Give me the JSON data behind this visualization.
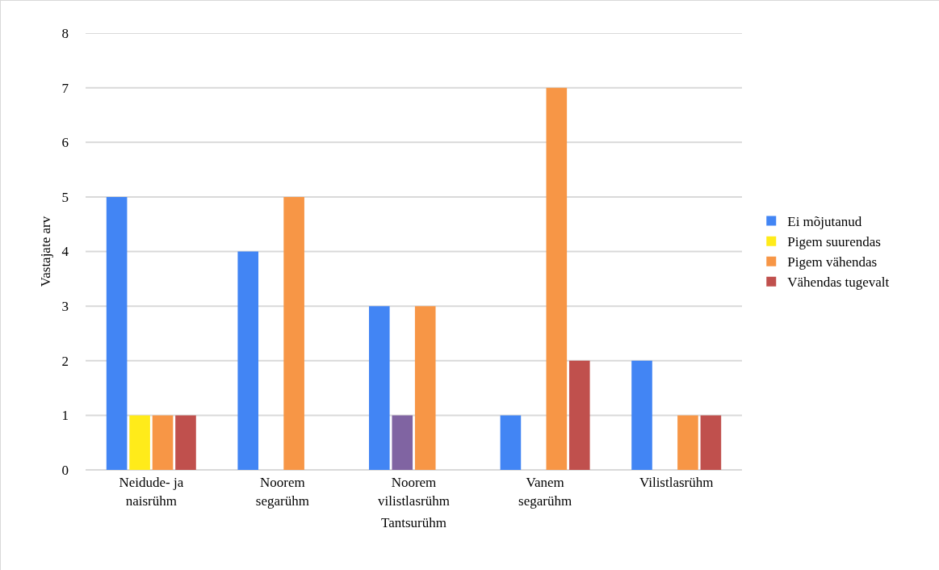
{
  "chart_data": {
    "type": "bar",
    "xlabel": "Tantsurühm",
    "ylabel": "Vastajate arv",
    "categories": [
      "Neidude- ja naisrühm",
      "Noorem segarühm",
      "Noorem vilistlasrühm",
      "Vanem segarühm",
      "Vilistlasrühm"
    ],
    "series": [
      {
        "name": "Ei mõjutanud",
        "color": "#4285f4",
        "values": [
          5,
          4,
          3,
          1,
          2
        ]
      },
      {
        "name": "Pigem suurendas",
        "color": "#ffeb1a",
        "colors": [
          null,
          null,
          "#8064a2",
          null,
          null
        ],
        "values": [
          1,
          0,
          1,
          0,
          0
        ]
      },
      {
        "name": "Pigem vähendas",
        "color": "#f79646",
        "values": [
          1,
          5,
          3,
          7,
          1
        ]
      },
      {
        "name": "Vähendas tugevalt",
        "color": "#c0504d",
        "values": [
          1,
          0,
          0,
          2,
          1
        ]
      }
    ],
    "ylim": [
      0,
      8
    ],
    "yticks": [
      0,
      1,
      2,
      3,
      4,
      5,
      6,
      7,
      8
    ],
    "grid": "y",
    "legend": "right"
  }
}
